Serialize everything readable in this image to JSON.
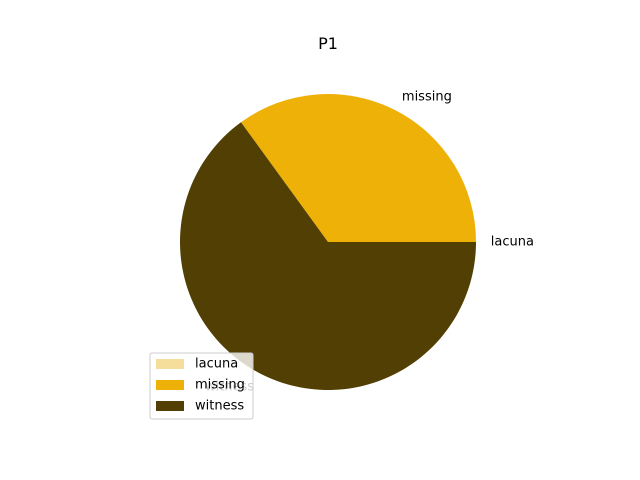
{
  "chart_data": {
    "type": "pie",
    "title": "P1",
    "labels": [
      "lacuna",
      "missing",
      "witness"
    ],
    "values": [
      0,
      35,
      65
    ],
    "colors": [
      "#f5dd9c",
      "#edb108",
      "#523f04"
    ],
    "start_angle_deg": 0,
    "direction": "counterclockwise",
    "legend": {
      "position": "lower-left",
      "entries": [
        "lacuna",
        "missing",
        "witness"
      ]
    }
  }
}
